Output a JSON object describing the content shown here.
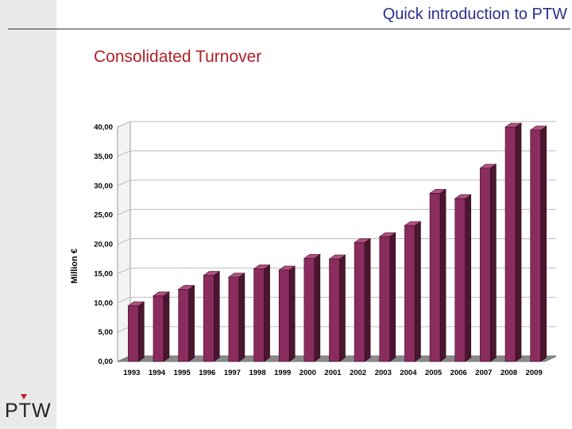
{
  "header": {
    "title": "Quick introduction to PTW"
  },
  "slide": {
    "title": "Consolidated Turnover"
  },
  "logo": {
    "text": "PTW"
  },
  "colors": {
    "bar_front": "#8b2c5e",
    "bar_side": "#4a1630",
    "bar_top": "#b0507e",
    "grid": "#bdbdbd",
    "floor": "#8a8a8a"
  },
  "chart_data": {
    "type": "bar",
    "title": "",
    "xlabel": "",
    "ylabel": "Million €",
    "ylim": [
      0,
      40
    ],
    "yticks": [
      "0,00",
      "5,00",
      "10,00",
      "15,00",
      "20,00",
      "25,00",
      "30,00",
      "35,00",
      "40,00"
    ],
    "grid": true,
    "categories": [
      "1993",
      "1994",
      "1995",
      "1996",
      "1997",
      "1998",
      "1999",
      "2000",
      "2001",
      "2002",
      "2003",
      "2004",
      "2005",
      "2006",
      "2007",
      "2008",
      "2009"
    ],
    "values": [
      9.5,
      11.2,
      12.3,
      14.7,
      14.4,
      15.8,
      15.6,
      17.6,
      17.5,
      20.3,
      21.3,
      23.2,
      28.7,
      27.8,
      33.0,
      40.0,
      39.5
    ]
  }
}
